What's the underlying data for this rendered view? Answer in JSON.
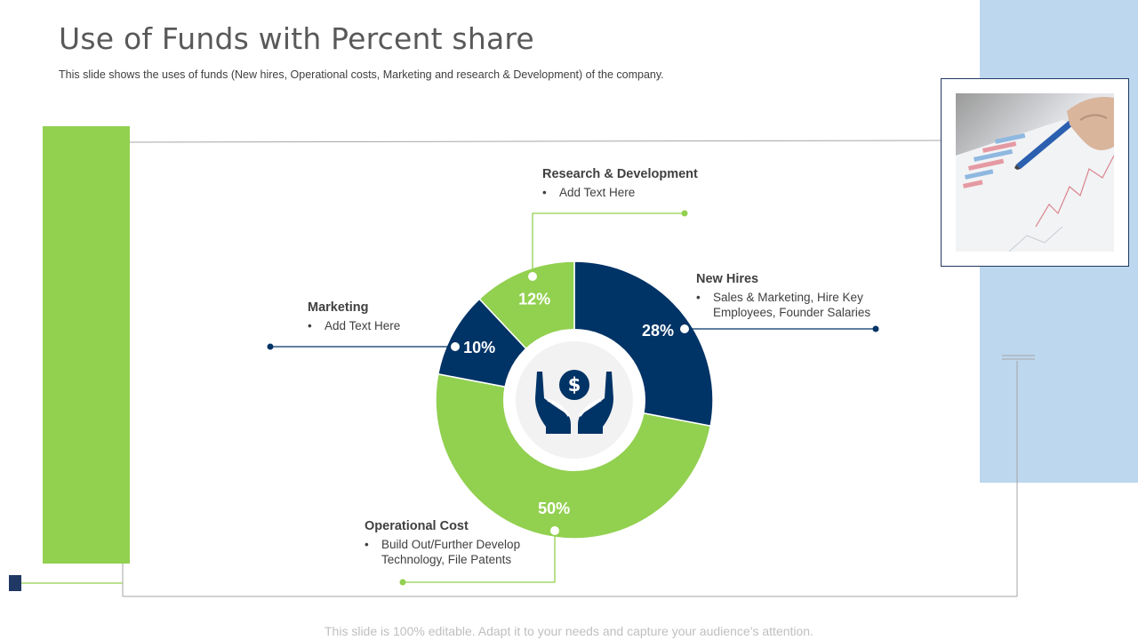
{
  "header": {
    "title": "Use of Funds with Percent share",
    "subtitle": "This slide shows the uses of funds (New hires, Operational costs, Marketing and research & Development) of the company."
  },
  "footer": {
    "text": "This slide is 100% editable. Adapt it to your needs and capture your audience’s attention."
  },
  "colors": {
    "navy": "#003366",
    "green": "#92d050",
    "light_blue": "#bdd7ee"
  },
  "center_icon": "hands-holding-dollar-icon",
  "chart_data": {
    "type": "pie",
    "categories": [
      "New Hires",
      "Operational Cost",
      "Marketing",
      "Research & Development"
    ],
    "values": [
      28,
      50,
      10,
      12
    ],
    "value_labels": [
      "28%",
      "50%",
      "10%",
      "12%"
    ],
    "colors": [
      "#003366",
      "#92d050",
      "#003366",
      "#92d050"
    ]
  },
  "labels": {
    "new_hires": {
      "heading": "New Hires",
      "bullet": "Sales & Marketing, Hire Key Employees, Founder Salaries"
    },
    "operational": {
      "heading": "Operational Cost",
      "bullet": "Build Out/Further Develop Technology, File Patents"
    },
    "marketing": {
      "heading": "Marketing",
      "bullet": "Add Text Here"
    },
    "research": {
      "heading": "Research & Development",
      "bullet": "Add Text Here"
    }
  }
}
